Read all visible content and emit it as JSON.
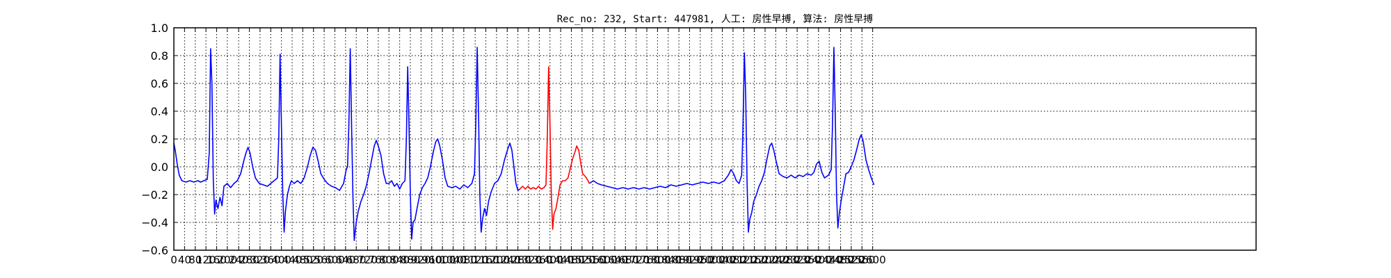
{
  "chart_data": {
    "type": "line",
    "title": "Rec_no: 232, Start: 447981, 人工: 房性早搏, 算法: 房性早搏",
    "xlabel": "",
    "ylabel": "",
    "xlim": [
      0,
      1620
    ],
    "ylim": [
      -0.6,
      1.0
    ],
    "grid": true,
    "y_ticks": [
      -0.6,
      -0.4,
      -0.2,
      0.0,
      0.2,
      0.4,
      0.6,
      0.8,
      1.0
    ],
    "y_tick_labels": [
      "−0.6",
      "−0.4",
      "−0.2",
      "0.0",
      "0.2",
      "0.4",
      "0.6",
      "0.8",
      "1.0"
    ],
    "x_tick_labels": [
      "0",
      "40",
      "80",
      "120",
      "160",
      "200",
      "240",
      "280",
      "320",
      "360",
      "400",
      "440",
      "480",
      "520",
      "560",
      "600",
      "640",
      "680",
      "720",
      "760",
      "800",
      "840",
      "880",
      "920",
      "960",
      "1000",
      "1040",
      "1080",
      "1120",
      "1160",
      "1200",
      "1240",
      "1280",
      "1320",
      "1360",
      "1400",
      "1440",
      "1480",
      "1520",
      "1560",
      "1600",
      "1640",
      "1680",
      "1720",
      "1760",
      "1800",
      "1840",
      "1880",
      "1920",
      "1960",
      "2000",
      "2040",
      "2080",
      "2120",
      "2160",
      "2200",
      "2240",
      "2280",
      "2320",
      "2360",
      "2400",
      "2440",
      "2480",
      "2520",
      "2560",
      "2600"
    ],
    "x_tick_positions": [
      0,
      16,
      32,
      48,
      64,
      80,
      97,
      113,
      129,
      145,
      161,
      177,
      193,
      209,
      225,
      241,
      257,
      273,
      290,
      306,
      322,
      338,
      354,
      370,
      386,
      402,
      418,
      434,
      451,
      467,
      483,
      499,
      515,
      531,
      547,
      563,
      579,
      595,
      611,
      627,
      644,
      660,
      676,
      692,
      708,
      724,
      740,
      756,
      772,
      788,
      805,
      821,
      837,
      853,
      869,
      885,
      901,
      917,
      933,
      949,
      965,
      981,
      998,
      1014,
      1030,
      1046
    ],
    "series": [
      {
        "color": "#0000ff",
        "segments": [
          [
            [
              0,
              0.17
            ],
            [
              2,
              0.12
            ],
            [
              5,
              0.02
            ],
            [
              8,
              -0.06
            ],
            [
              12,
              -0.1
            ],
            [
              18,
              -0.11
            ],
            [
              24,
              -0.1
            ],
            [
              30,
              -0.11
            ],
            [
              36,
              -0.1
            ],
            [
              40,
              -0.11
            ],
            [
              45,
              -0.1
            ],
            [
              50,
              -0.09
            ],
            [
              53,
              0.1
            ],
            [
              55,
              0.85
            ],
            [
              57,
              0.6
            ],
            [
              59,
              -0.1
            ],
            [
              61,
              -0.34
            ],
            [
              63,
              -0.24
            ],
            [
              66,
              -0.3
            ],
            [
              69,
              -0.22
            ],
            [
              72,
              -0.28
            ],
            [
              75,
              -0.14
            ],
            [
              80,
              -0.12
            ],
            [
              85,
              -0.15
            ],
            [
              90,
              -0.12
            ],
            [
              95,
              -0.1
            ],
            [
              100,
              -0.05
            ],
            [
              105,
              0.05
            ],
            [
              108,
              0.1
            ],
            [
              111,
              0.14
            ],
            [
              114,
              0.1
            ],
            [
              118,
              0.0
            ],
            [
              122,
              -0.08
            ],
            [
              128,
              -0.12
            ],
            [
              134,
              -0.13
            ],
            [
              140,
              -0.14
            ],
            [
              145,
              -0.12
            ],
            [
              150,
              -0.1
            ],
            [
              155,
              -0.08
            ],
            [
              157,
              0.2
            ],
            [
              159,
              0.81
            ],
            [
              161,
              0.3
            ],
            [
              163,
              -0.2
            ],
            [
              165,
              -0.47
            ],
            [
              167,
              -0.32
            ],
            [
              170,
              -0.2
            ],
            [
              173,
              -0.14
            ],
            [
              176,
              -0.1
            ],
            [
              180,
              -0.12
            ],
            [
              185,
              -0.1
            ],
            [
              190,
              -0.12
            ],
            [
              195,
              -0.08
            ],
            [
              200,
              0.0
            ],
            [
              204,
              0.08
            ],
            [
              208,
              0.14
            ],
            [
              212,
              0.12
            ],
            [
              216,
              0.04
            ],
            [
              220,
              -0.05
            ],
            [
              225,
              -0.09
            ],
            [
              230,
              -0.12
            ],
            [
              236,
              -0.14
            ],
            [
              242,
              -0.15
            ],
            [
              248,
              -0.17
            ],
            [
              254,
              -0.12
            ],
            [
              258,
              -0.02
            ],
            [
              260,
              0.0
            ],
            [
              262,
              0.3
            ],
            [
              264,
              0.85
            ],
            [
              266,
              0.3
            ],
            [
              268,
              -0.2
            ],
            [
              270,
              -0.53
            ],
            [
              273,
              -0.4
            ],
            [
              276,
              -0.32
            ],
            [
              280,
              -0.25
            ],
            [
              284,
              -0.2
            ],
            [
              288,
              -0.14
            ],
            [
              292,
              -0.05
            ],
            [
              296,
              0.05
            ],
            [
              300,
              0.15
            ],
            [
              303,
              0.19
            ],
            [
              306,
              0.15
            ],
            [
              310,
              0.08
            ],
            [
              314,
              -0.05
            ],
            [
              318,
              -0.12
            ],
            [
              322,
              -0.12
            ],
            [
              326,
              -0.1
            ],
            [
              330,
              -0.14
            ],
            [
              334,
              -0.12
            ],
            [
              338,
              -0.16
            ],
            [
              342,
              -0.12
            ],
            [
              346,
              -0.1
            ],
            [
              348,
              0.2
            ],
            [
              350,
              0.72
            ],
            [
              352,
              0.3
            ],
            [
              354,
              -0.2
            ],
            [
              356,
              -0.52
            ],
            [
              358,
              -0.4
            ],
            [
              361,
              -0.38
            ],
            [
              364,
              -0.3
            ],
            [
              368,
              -0.2
            ],
            [
              372,
              -0.15
            ],
            [
              376,
              -0.12
            ],
            [
              380,
              -0.08
            ],
            [
              384,
              0.0
            ],
            [
              388,
              0.1
            ],
            [
              392,
              0.18
            ],
            [
              395,
              0.2
            ],
            [
              398,
              0.15
            ],
            [
              402,
              0.05
            ],
            [
              406,
              -0.08
            ],
            [
              410,
              -0.14
            ],
            [
              416,
              -0.15
            ],
            [
              422,
              -0.14
            ],
            [
              428,
              -0.16
            ],
            [
              434,
              -0.13
            ],
            [
              440,
              -0.15
            ],
            [
              446,
              -0.12
            ],
            [
              450,
              -0.05
            ],
            [
              452,
              0.3
            ],
            [
              454,
              0.86
            ],
            [
              456,
              0.4
            ],
            [
              458,
              -0.2
            ],
            [
              460,
              -0.47
            ],
            [
              462,
              -0.38
            ],
            [
              465,
              -0.3
            ],
            [
              468,
              -0.35
            ],
            [
              471,
              -0.25
            ],
            [
              475,
              -0.18
            ],
            [
              480,
              -0.12
            ],
            [
              485,
              -0.1
            ],
            [
              490,
              -0.05
            ],
            [
              495,
              0.05
            ],
            [
              500,
              0.13
            ],
            [
              503,
              0.17
            ],
            [
              506,
              0.12
            ],
            [
              509,
              0.0
            ],
            [
              512,
              -0.12
            ],
            [
              515,
              -0.17
            ],
            [
              518,
              -0.16
            ]
          ],
          [
            [
              622,
              -0.12
            ],
            [
              628,
              -0.1
            ],
            [
              634,
              -0.12
            ],
            [
              640,
              -0.13
            ],
            [
              648,
              -0.14
            ],
            [
              656,
              -0.15
            ],
            [
              664,
              -0.16
            ],
            [
              672,
              -0.15
            ],
            [
              680,
              -0.16
            ],
            [
              688,
              -0.15
            ],
            [
              696,
              -0.16
            ],
            [
              704,
              -0.15
            ],
            [
              712,
              -0.16
            ],
            [
              720,
              -0.15
            ],
            [
              728,
              -0.14
            ],
            [
              736,
              -0.15
            ],
            [
              744,
              -0.13
            ],
            [
              752,
              -0.14
            ],
            [
              760,
              -0.13
            ],
            [
              768,
              -0.12
            ],
            [
              776,
              -0.13
            ],
            [
              784,
              -0.12
            ],
            [
              792,
              -0.11
            ],
            [
              800,
              -0.12
            ],
            [
              808,
              -0.11
            ],
            [
              816,
              -0.12
            ],
            [
              824,
              -0.1
            ],
            [
              830,
              -0.06
            ],
            [
              834,
              -0.02
            ],
            [
              838,
              -0.05
            ],
            [
              842,
              -0.1
            ],
            [
              846,
              -0.12
            ],
            [
              850,
              -0.06
            ],
            [
              852,
              0.3
            ],
            [
              854,
              0.82
            ],
            [
              856,
              0.5
            ],
            [
              858,
              -0.1
            ],
            [
              860,
              -0.47
            ],
            [
              862,
              -0.38
            ],
            [
              865,
              -0.33
            ],
            [
              868,
              -0.25
            ],
            [
              872,
              -0.2
            ],
            [
              876,
              -0.14
            ],
            [
              880,
              -0.1
            ],
            [
              884,
              -0.04
            ],
            [
              888,
              0.06
            ],
            [
              892,
              0.15
            ],
            [
              895,
              0.17
            ],
            [
              898,
              0.12
            ],
            [
              902,
              0.03
            ],
            [
              906,
              -0.05
            ],
            [
              912,
              -0.07
            ],
            [
              918,
              -0.08
            ],
            [
              924,
              -0.06
            ],
            [
              930,
              -0.08
            ],
            [
              936,
              -0.06
            ],
            [
              942,
              -0.07
            ],
            [
              948,
              -0.05
            ],
            [
              954,
              -0.06
            ],
            [
              958,
              -0.04
            ],
            [
              962,
              0.02
            ],
            [
              966,
              0.04
            ],
            [
              970,
              -0.04
            ],
            [
              974,
              -0.08
            ],
            [
              980,
              -0.06
            ],
            [
              984,
              -0.02
            ],
            [
              986,
              0.3
            ],
            [
              988,
              0.86
            ],
            [
              990,
              0.4
            ],
            [
              992,
              -0.2
            ],
            [
              994,
              -0.44
            ],
            [
              996,
              -0.34
            ],
            [
              999,
              -0.24
            ],
            [
              1002,
              -0.16
            ],
            [
              1006,
              -0.05
            ],
            [
              1010,
              -0.04
            ],
            [
              1014,
              0.0
            ],
            [
              1018,
              0.05
            ],
            [
              1022,
              0.12
            ],
            [
              1026,
              0.2
            ],
            [
              1029,
              0.23
            ],
            [
              1032,
              0.18
            ],
            [
              1036,
              0.05
            ],
            [
              1040,
              -0.02
            ],
            [
              1044,
              -0.08
            ],
            [
              1048,
              -0.13
            ]
          ]
        ]
      },
      {
        "color": "#ff0000",
        "segments": [
          [
            [
              518,
              -0.16
            ],
            [
              522,
              -0.14
            ],
            [
              526,
              -0.16
            ],
            [
              530,
              -0.14
            ],
            [
              534,
              -0.16
            ],
            [
              538,
              -0.15
            ],
            [
              542,
              -0.16
            ],
            [
              546,
              -0.14
            ],
            [
              550,
              -0.16
            ],
            [
              554,
              -0.15
            ],
            [
              557,
              -0.13
            ],
            [
              559,
              0.2
            ],
            [
              561,
              0.72
            ],
            [
              563,
              0.3
            ],
            [
              565,
              -0.2
            ],
            [
              567,
              -0.45
            ],
            [
              569,
              -0.34
            ],
            [
              572,
              -0.3
            ],
            [
              575,
              -0.22
            ],
            [
              578,
              -0.13
            ],
            [
              582,
              -0.1
            ],
            [
              586,
              -0.1
            ],
            [
              590,
              -0.08
            ],
            [
              594,
              0.0
            ],
            [
              597,
              0.06
            ],
            [
              600,
              0.1
            ],
            [
              603,
              0.15
            ],
            [
              606,
              0.12
            ],
            [
              609,
              0.03
            ],
            [
              612,
              -0.05
            ],
            [
              616,
              -0.07
            ],
            [
              620,
              -0.1
            ],
            [
              622,
              -0.12
            ]
          ]
        ]
      }
    ]
  }
}
